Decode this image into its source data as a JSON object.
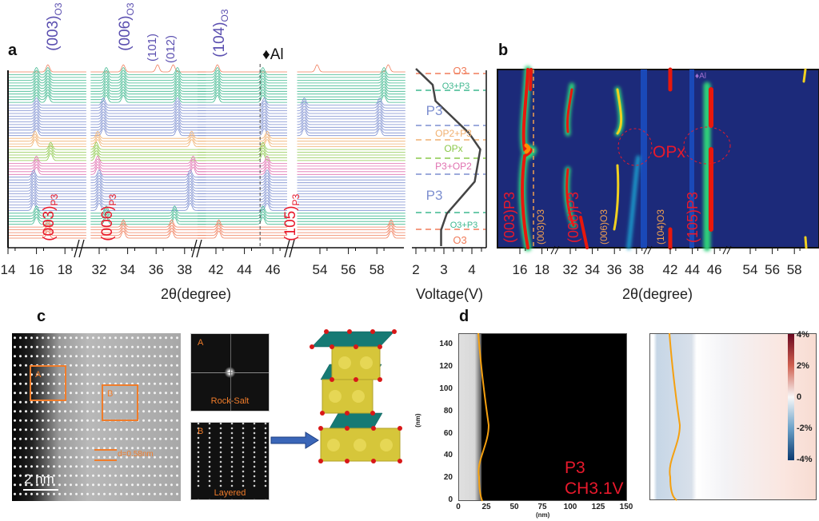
{
  "panel_labels": {
    "a": "a",
    "b": "b",
    "c": "c",
    "d": "d"
  },
  "chart_data": [
    {
      "type": "line",
      "id": "a",
      "title": "",
      "xlabel": "2θ(degree)",
      "ylabel": "",
      "xticks": [
        "14",
        "16",
        "18",
        "32",
        "34",
        "36",
        "38",
        "42",
        "44",
        "46",
        "54",
        "56",
        "58"
      ],
      "axis_breaks": [
        [
          19.5,
          31.5
        ],
        [
          39.5,
          40.5
        ],
        [
          47,
          52.5
        ]
      ],
      "annotations": [
        {
          "text": "(003)",
          "sub": "O3"
        },
        {
          "text": "(006)",
          "sub": "O3"
        },
        {
          "text": "(101)",
          "sub": ""
        },
        {
          "text": "(012)",
          "sub": ""
        },
        {
          "text": "(104)",
          "sub": "O3"
        },
        {
          "text": "(003)",
          "sub": "P3"
        },
        {
          "text": "(006)",
          "sub": "P3"
        },
        {
          "text": "(105)",
          "sub": "P3"
        }
      ],
      "al_marker": {
        "label": "♦Al",
        "position": 45.1
      },
      "trace_groups": [
        {
          "phase": "O3",
          "count": 1,
          "color": "#f07c5a",
          "peaks": [
            16.8,
            33.7,
            36.1,
            37.2,
            42.1,
            53.8,
            58.8
          ]
        },
        {
          "phase": "O3+P3",
          "count": 11,
          "color": "#3fb88f",
          "peaks": [
            16.0,
            16.8,
            32.5,
            33.7,
            37.5,
            42.1,
            45.3,
            58.5
          ]
        },
        {
          "phase": "P3",
          "count": 12,
          "color": "#7d8fd0",
          "peaks": [
            16.0,
            32.3,
            37.5,
            45.4,
            52.9,
            58.2
          ]
        },
        {
          "phase": "OP2+P3",
          "count": 4,
          "color": "#f0b070",
          "peaks": [
            15.9,
            31.9,
            38.5,
            45.6
          ]
        },
        {
          "phase": "OPx",
          "count": 5,
          "color": "#8cc84b",
          "peaks": [
            17.0,
            31.8,
            45.3
          ]
        },
        {
          "phase": "P3+OP2",
          "count": 5,
          "color": "#e070b0",
          "peaks": [
            16.0,
            31.9,
            38.6,
            45.6
          ]
        },
        {
          "phase": "P3",
          "count": 13,
          "color": "#7d8fd0",
          "peaks": [
            15.8,
            32.0,
            38.4,
            45.6
          ]
        },
        {
          "phase": "O3+P3",
          "count": 5,
          "color": "#3fb88f",
          "peaks": [
            16.0,
            32.5,
            37.3,
            45.3
          ]
        },
        {
          "phase": "O3",
          "count": 5,
          "color": "#f07c5a",
          "peaks": [
            16.8,
            33.7,
            37.1,
            42.2,
            59.0
          ]
        }
      ]
    },
    {
      "type": "line",
      "id": "voltage",
      "xlabel": "Voltage(V)",
      "xticks": [
        "2",
        "3",
        "4"
      ],
      "xlim": [
        2,
        4.5
      ],
      "phases": [
        {
          "label": "O3",
          "color": "#f07c5a"
        },
        {
          "label": "O3+P3",
          "color": "#3fb88f"
        },
        {
          "label": "P3",
          "color": "#7d8fd0"
        },
        {
          "label": "OP2+P3",
          "color": "#f0b070"
        },
        {
          "label": "OPx",
          "color": "#8cc84b"
        },
        {
          "label": "P3+OP2",
          "color": "#e070b0"
        },
        {
          "label": "P3",
          "color": "#7d8fd0"
        },
        {
          "label": "O3+P3",
          "color": "#3fb88f"
        },
        {
          "label": "O3",
          "color": "#f07c5a"
        }
      ],
      "curve_voltage_top_to_bottom": [
        2.0,
        2.6,
        2.7,
        3.3,
        3.9,
        4.3,
        4.2,
        4.1,
        3.6,
        3.1,
        2.9,
        2.9
      ]
    },
    {
      "type": "heatmap",
      "id": "b",
      "xlabel": "2θ(degree)",
      "xticks": [
        "16",
        "18",
        "32",
        "34",
        "36",
        "38",
        "42",
        "44",
        "46",
        "54",
        "56",
        "58"
      ],
      "annotations": [
        "OPx",
        "(003)P3",
        "(006)P3",
        "(105)P3",
        "(003)O3",
        "(006)O3",
        "(104)O3",
        "♦Al"
      ]
    },
    {
      "type": "heatmap",
      "id": "d",
      "xlabel": "(nm)",
      "ylabel": "(nm)",
      "xticks": [
        "0",
        "25",
        "50",
        "75",
        "100",
        "125",
        "150"
      ],
      "yticks": [
        "0",
        "20",
        "40",
        "60",
        "80",
        "100",
        "120",
        "140"
      ],
      "xlim": [
        0,
        150
      ],
      "ylim": [
        0,
        150
      ],
      "labels": [
        "P3",
        "CH3.1V"
      ],
      "colorbar": {
        "ticks": [
          "4%",
          "2%",
          "0",
          "-2%",
          "-4%"
        ],
        "range": [
          -4,
          4
        ]
      }
    }
  ],
  "panel_c": {
    "box_a": "A",
    "box_b": "B",
    "fft_a_label": "A",
    "fft_a_caption": "Rock-Salt",
    "fft_b_label": "B",
    "fft_b_caption": "Layered",
    "d_spacing": "d=0.58nm",
    "scale_bar": "2 nm"
  }
}
